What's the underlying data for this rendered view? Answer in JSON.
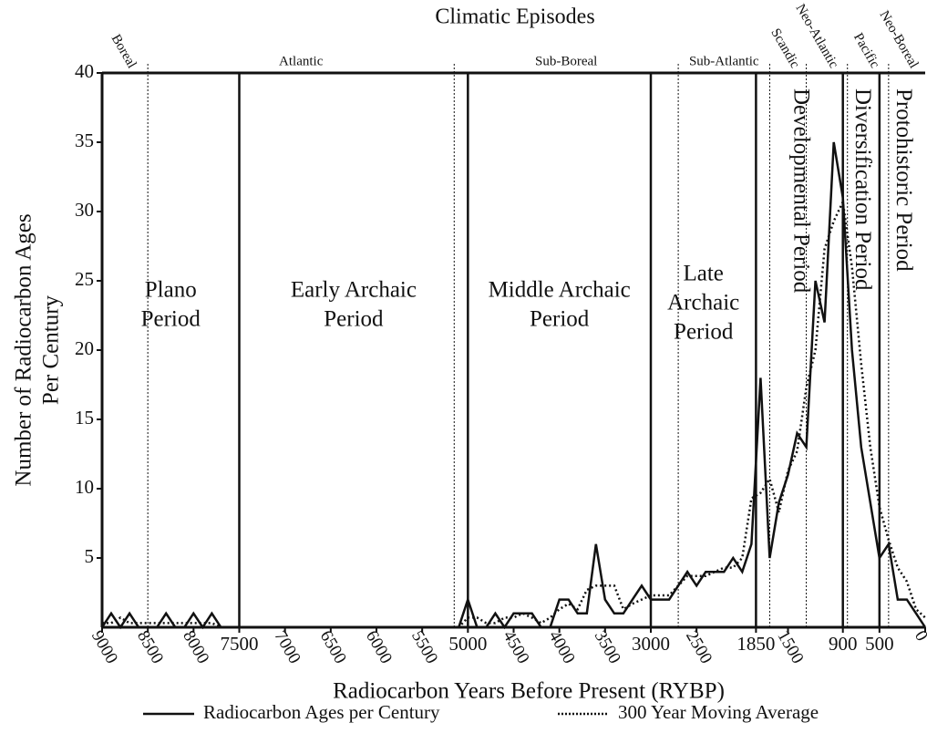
{
  "chart_data": {
    "type": "line",
    "title": "Climatic Episodes",
    "x_label": "Radiocarbon Years Before Present (RYBP)",
    "y_label": [
      "Number of Radiocarbon Ages",
      "Per Century"
    ],
    "xlim": [
      9000,
      0
    ],
    "ylim": [
      0,
      40
    ],
    "xticks": [
      9000,
      8500,
      8000,
      7500,
      7000,
      6500,
      6000,
      5500,
      5000,
      4500,
      4000,
      3500,
      3000,
      2500,
      1850,
      1500,
      900,
      500,
      0
    ],
    "yticks": [
      5,
      10,
      15,
      20,
      25,
      30,
      35,
      40
    ],
    "x": [
      9000,
      8900,
      8800,
      8700,
      8600,
      8500,
      8400,
      8300,
      8200,
      8100,
      8000,
      7900,
      7800,
      7700,
      7600,
      7500,
      7400,
      7300,
      7200,
      7100,
      7000,
      6900,
      6800,
      6700,
      6600,
      6500,
      6400,
      6300,
      6200,
      6100,
      6000,
      5900,
      5800,
      5700,
      5600,
      5500,
      5400,
      5300,
      5200,
      5100,
      5000,
      4900,
      4800,
      4700,
      4600,
      4500,
      4400,
      4300,
      4200,
      4100,
      4000,
      3900,
      3800,
      3700,
      3600,
      3500,
      3400,
      3300,
      3200,
      3100,
      3000,
      2900,
      2800,
      2700,
      2600,
      2500,
      2400,
      2300,
      2200,
      2100,
      2000,
      1900,
      1800,
      1700,
      1600,
      1500,
      1400,
      1300,
      1200,
      1100,
      1000,
      900,
      800,
      700,
      600,
      500,
      400,
      300,
      200,
      100,
      0
    ],
    "series": [
      {
        "name": "Radiocarbon Ages per Century",
        "color": "#111111",
        "dash": "solid",
        "values": [
          0,
          1,
          0,
          1,
          0,
          0,
          0,
          1,
          0,
          0,
          1,
          0,
          1,
          0,
          0,
          0,
          0,
          0,
          0,
          0,
          0,
          0,
          0,
          0,
          0,
          0,
          0,
          0,
          0,
          0,
          0,
          0,
          0,
          0,
          0,
          0,
          0,
          0,
          0,
          0,
          2,
          0,
          0,
          1,
          0,
          1,
          1,
          1,
          0,
          0,
          2,
          2,
          1,
          1,
          6,
          2,
          1,
          1,
          2,
          3,
          2,
          2,
          2,
          3,
          4,
          3,
          4,
          4,
          4,
          5,
          4,
          6,
          18,
          5,
          9,
          11,
          14,
          13,
          25,
          22,
          35,
          31,
          20,
          13,
          9,
          5,
          6,
          2,
          2,
          1,
          0
        ]
      },
      {
        "name": "300 Year Moving Average",
        "color": "#111111",
        "dash": "dotted",
        "values": [
          0.3,
          0.3,
          0.7,
          0.3,
          0.3,
          0.3,
          0.3,
          0.3,
          0.3,
          0.3,
          0.3,
          0.3,
          0.3,
          0,
          0,
          0,
          0,
          0,
          0,
          0,
          0,
          0,
          0,
          0,
          0,
          0,
          0,
          0,
          0,
          0,
          0,
          0,
          0,
          0,
          0,
          0,
          0,
          0,
          0,
          0,
          0.7,
          0.7,
          0.3,
          0.3,
          0.7,
          0.7,
          1,
          0.7,
          0.3,
          0.7,
          1.3,
          1.7,
          1.3,
          2.7,
          3,
          3,
          3,
          1.3,
          1.7,
          2,
          2.3,
          2.3,
          2.3,
          3,
          3.7,
          3.7,
          3.7,
          4,
          4.3,
          4.3,
          5,
          9.3,
          9.7,
          10.7,
          8.3,
          11.3,
          12.7,
          17.3,
          20,
          27.3,
          29.3,
          30.7,
          26,
          19,
          13,
          8.7,
          6.3,
          4.3,
          3.3,
          1.3,
          0.7
        ]
      }
    ],
    "periods": [
      {
        "label": [
          "Plano",
          "Period"
        ],
        "start": 9000,
        "end": 7500
      },
      {
        "label": [
          "Early Archaic",
          "Period"
        ],
        "start": 7500,
        "end": 5000
      },
      {
        "label": [
          "Middle Archaic",
          "Period"
        ],
        "start": 5000,
        "end": 3000
      },
      {
        "label": [
          "Late",
          "Archaic",
          "Period"
        ],
        "start": 3000,
        "end": 1850
      },
      {
        "label": [
          "Developmental Period"
        ],
        "start": 1850,
        "end": 900
      },
      {
        "label": [
          "Diversification Period"
        ],
        "start": 900,
        "end": 500
      },
      {
        "label": [
          "Protohistoric Period"
        ],
        "start": 500,
        "end": 0
      }
    ],
    "episodes": [
      {
        "label": "Boreal",
        "start": 9000,
        "end": 8500
      },
      {
        "label": "Atlantic",
        "start": 8500,
        "end": 5150
      },
      {
        "label": "Sub-Boreal",
        "start": 5150,
        "end": 2700
      },
      {
        "label": "Sub-Atlantic",
        "start": 2700,
        "end": 1700
      },
      {
        "label": "Scandic",
        "start": 1700,
        "end": 1300
      },
      {
        "label": "Neo-Atlantic",
        "start": 1300,
        "end": 850
      },
      {
        "label": "Pacific",
        "start": 850,
        "end": 400
      },
      {
        "label": "Neo-Boreal",
        "start": 400,
        "end": 0
      }
    ]
  }
}
